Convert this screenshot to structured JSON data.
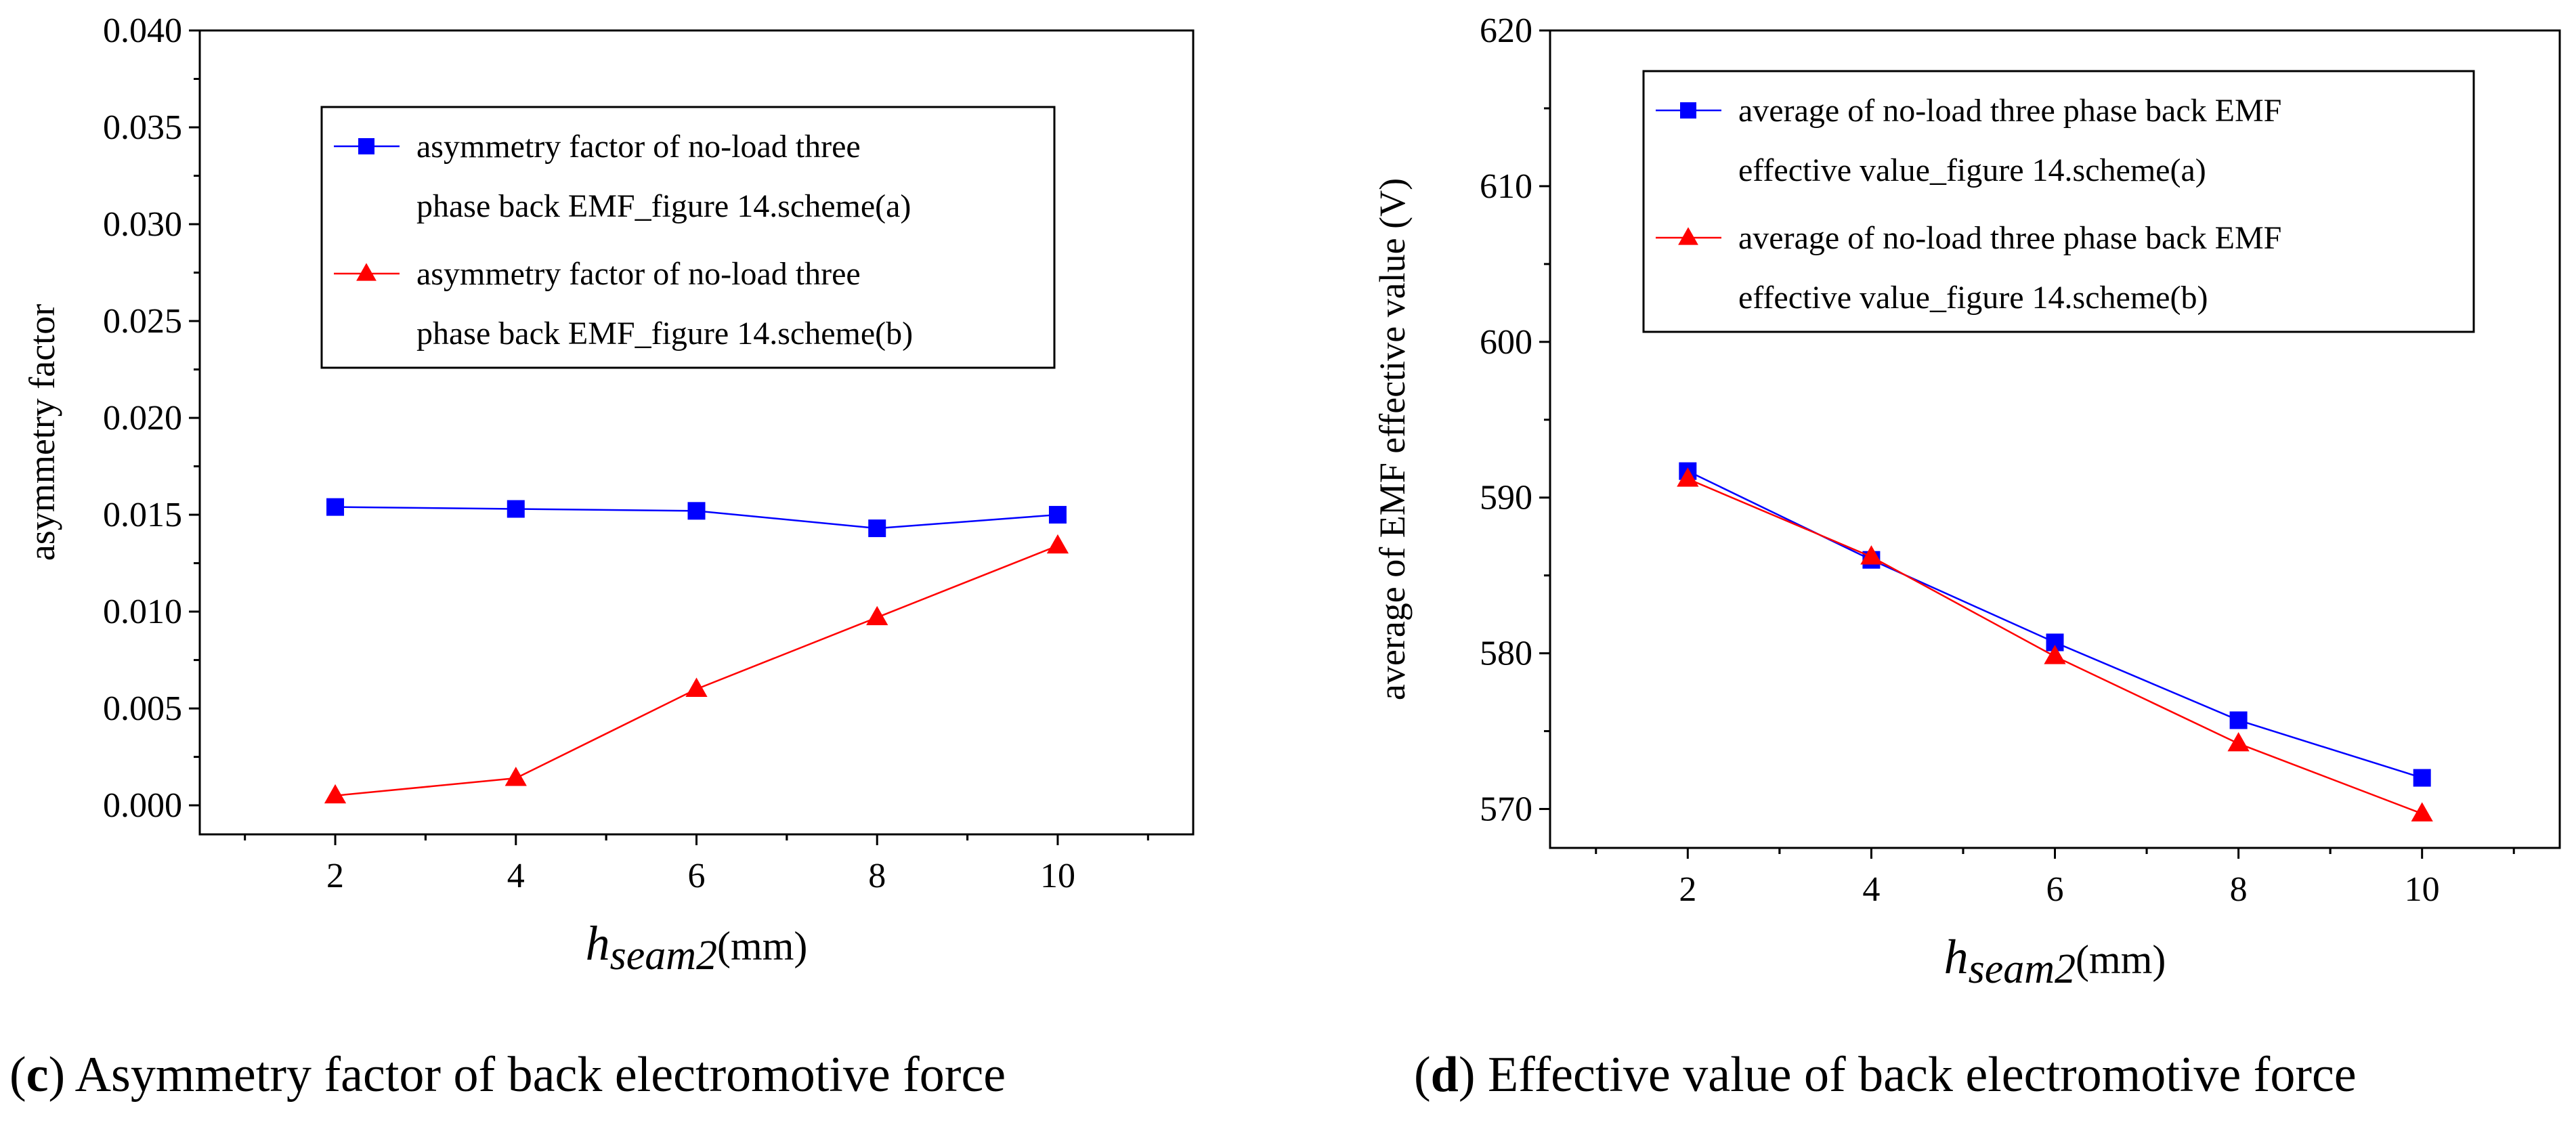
{
  "chart_data": [
    {
      "type": "line",
      "xlabel": {
        "main": "h",
        "sub": "seam2",
        "unit": "(mm)"
      },
      "ylabel": "asymmetry factor",
      "xlim": [
        0.5,
        11.5
      ],
      "ylim": [
        -0.0015,
        0.04
      ],
      "x_ticks": [
        2,
        4,
        6,
        8,
        10
      ],
      "y_ticks": [
        0,
        0.005,
        0.01,
        0.015,
        0.02,
        0.025,
        0.03,
        0.035,
        0.04
      ],
      "y_tick_labels": [
        "0.000",
        "0.005",
        "0.010",
        "0.015",
        "0.020",
        "0.025",
        "0.030",
        "0.035",
        "0.040"
      ],
      "legend_position": "top-right",
      "x": [
        2,
        4,
        6,
        8,
        10
      ],
      "series": [
        {
          "name_lines": [
            "asymmetry factor of no-load three",
            "phase back EMF_figure 14.scheme(a)"
          ],
          "color": "#0000ff",
          "marker": "square",
          "values": [
            0.0154,
            0.0153,
            0.0152,
            0.0143,
            0.015
          ]
        },
        {
          "name_lines": [
            "asymmetry factor of no-load three",
            "phase back EMF_figure 14.scheme(b)"
          ],
          "color": "#ff0000",
          "marker": "triangle",
          "values": [
            0.0005,
            0.0014,
            0.006,
            0.0097,
            0.0134
          ]
        }
      ],
      "caption": {
        "letter": "c",
        "text": "Asymmetry factor of back electromotive force"
      }
    },
    {
      "type": "line",
      "xlabel": {
        "main": "h",
        "sub": "seam2",
        "unit": "(mm)"
      },
      "ylabel": "average of  EMF effective value (V)",
      "xlim": [
        0.5,
        11.5
      ],
      "ylim": [
        567.5,
        620
      ],
      "x_ticks": [
        2,
        4,
        6,
        8,
        10
      ],
      "y_ticks": [
        570,
        580,
        590,
        600,
        610,
        620
      ],
      "y_tick_labels": [
        "570",
        "580",
        "590",
        "600",
        "610",
        "620"
      ],
      "legend_position": "top-right",
      "x": [
        2,
        4,
        6,
        8,
        10
      ],
      "series": [
        {
          "name_lines": [
            "average of no-load three phase back EMF",
            "effective value_figure 14.scheme(a)"
          ],
          "color": "#0000ff",
          "marker": "square",
          "values": [
            591.7,
            586.0,
            580.7,
            575.7,
            572.0
          ]
        },
        {
          "name_lines": [
            "average of no-load three phase back EMF",
            "effective value_figure 14.scheme(b)"
          ],
          "color": "#ff0000",
          "marker": "triangle",
          "values": [
            591.2,
            586.2,
            579.8,
            574.2,
            569.7
          ]
        }
      ],
      "caption": {
        "letter": "d",
        "text": "Effective value of back electromotive force"
      }
    }
  ]
}
